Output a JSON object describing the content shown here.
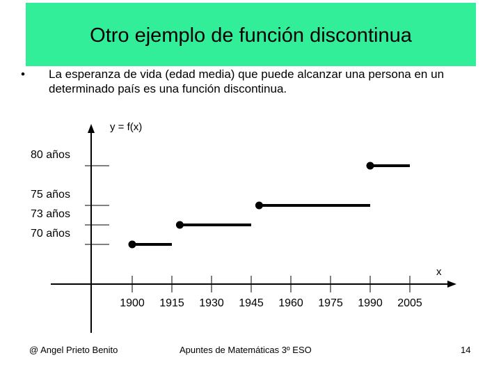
{
  "slide": {
    "title": "Otro ejemplo de función discontinua",
    "bullet": "La esperanza de vida (edad media)  que puede alcanzar una persona en un determinado país es una función discontinua."
  },
  "chart_data": {
    "type": "line",
    "title": "",
    "ylabel": "y = f(x)",
    "xlabel": "x",
    "x_tick_labels": [
      "1900",
      "1915",
      "1930",
      "1945",
      "1960",
      "1975",
      "1990",
      "2005"
    ],
    "y_tick_labels": [
      "70 años",
      "73 años",
      "75 años",
      "80 años"
    ],
    "y_tick_values": [
      70,
      73,
      75,
      80
    ],
    "grid": false,
    "series": [
      {
        "segments": [
          {
            "x_start": 1900,
            "x_end": 1915,
            "y": 70
          },
          {
            "x_start": 1918,
            "x_end": 1945,
            "y": 73
          },
          {
            "x_start": 1948,
            "x_end": 1990,
            "y": 75
          },
          {
            "x_start": 1990,
            "x_end": 2005,
            "y": 80
          }
        ]
      }
    ],
    "step_start_marker": "filled-circle"
  },
  "footer": {
    "author": "@ Angel Prieto Benito",
    "course": "Apuntes de Matemáticas 3º ESO",
    "page": "14"
  },
  "colors": {
    "title_band": "#33ee99",
    "ink": "#000000"
  }
}
